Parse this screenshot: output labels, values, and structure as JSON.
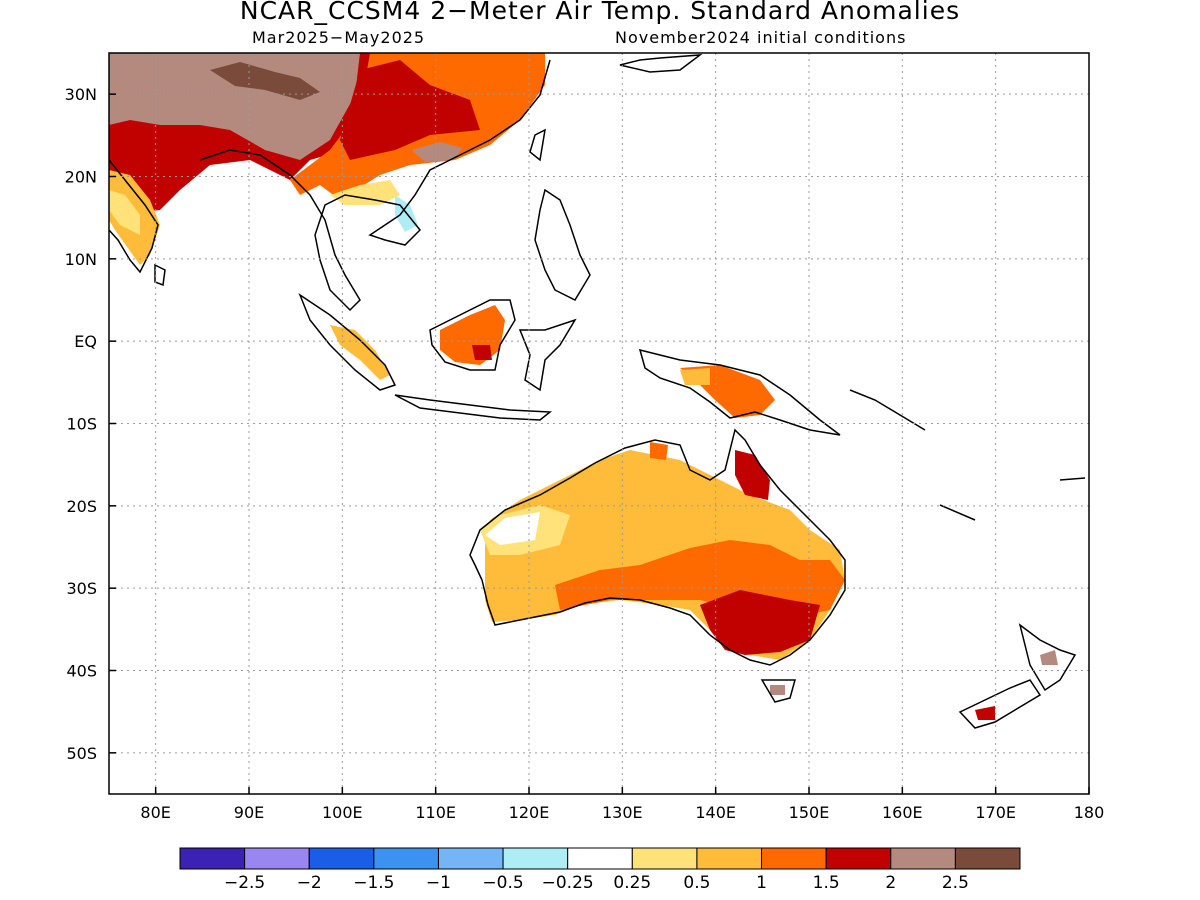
{
  "title": "NCAR_CCSM4 2−Meter Air Temp. Standard Anomalies",
  "subtitle_period": "Mar2025−May2025",
  "subtitle_init": "November2024 initial conditions",
  "map": {
    "projection": "lat-lon",
    "lon_range": [
      75,
      180
    ],
    "lat_range": [
      -55,
      35
    ],
    "lon_ticks": [
      {
        "value": 80,
        "label": "80E"
      },
      {
        "value": 90,
        "label": "90E"
      },
      {
        "value": 100,
        "label": "100E"
      },
      {
        "value": 110,
        "label": "110E"
      },
      {
        "value": 120,
        "label": "120E"
      },
      {
        "value": 130,
        "label": "130E"
      },
      {
        "value": 140,
        "label": "140E"
      },
      {
        "value": 150,
        "label": "150E"
      },
      {
        "value": 160,
        "label": "160E"
      },
      {
        "value": 170,
        "label": "170E"
      },
      {
        "value": 180,
        "label": "180"
      }
    ],
    "lat_ticks": [
      {
        "value": 30,
        "label": "30N"
      },
      {
        "value": 20,
        "label": "20N"
      },
      {
        "value": 10,
        "label": "10N"
      },
      {
        "value": 0,
        "label": "EQ"
      },
      {
        "value": -10,
        "label": "10S"
      },
      {
        "value": -20,
        "label": "20S"
      },
      {
        "value": -30,
        "label": "30S"
      },
      {
        "value": -40,
        "label": "40S"
      },
      {
        "value": -50,
        "label": "50S"
      }
    ],
    "grid": "dotted"
  },
  "colorbar": {
    "colors": [
      "#3b22b5",
      "#9a86f0",
      "#1a5ee8",
      "#3b92f0",
      "#75b5f5",
      "#aeecf6",
      "#ffffff",
      "#ffe27a",
      "#ffbc3a",
      "#ff6a00",
      "#c10000",
      "#b58a7e",
      "#7a4b3a"
    ],
    "labels": [
      "−2.5",
      "−2",
      "−1.5",
      "−1",
      "−0.5",
      "−0.25",
      "0.25",
      "0.5",
      "1",
      "1.5",
      "2",
      "2.5"
    ]
  }
}
